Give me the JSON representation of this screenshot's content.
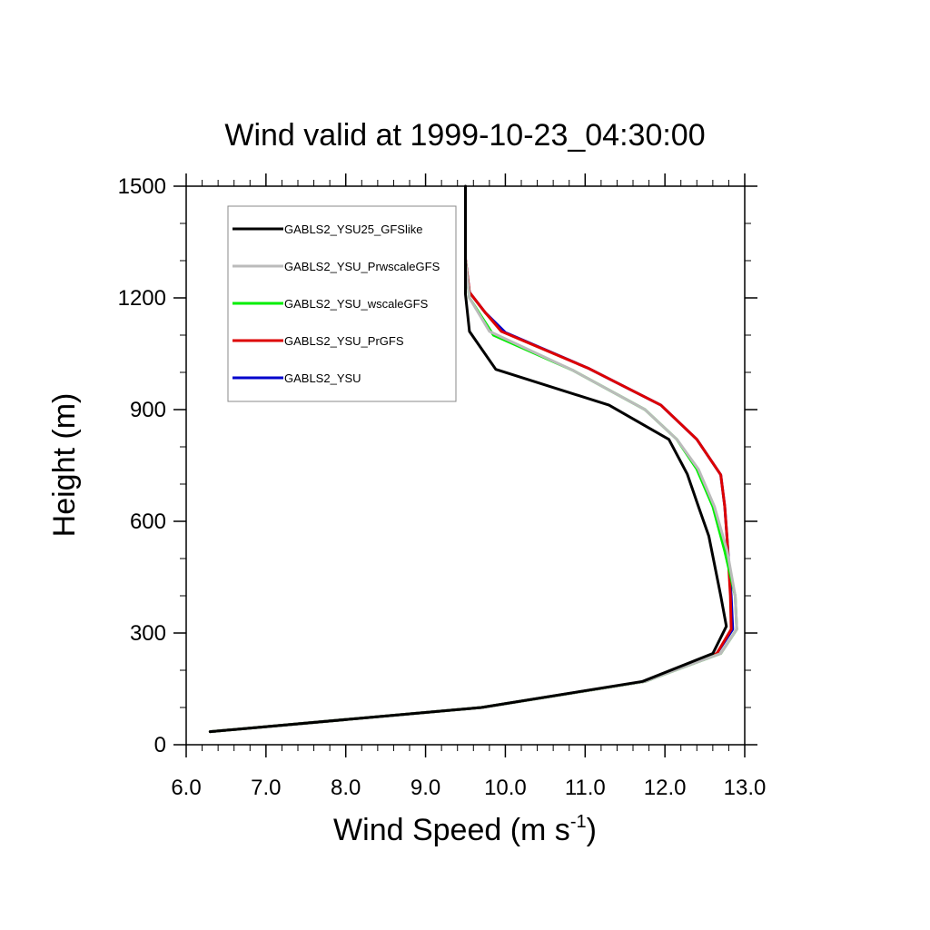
{
  "chart_data": {
    "type": "line",
    "title": "Wind valid at 1999-10-23_04:30:00",
    "xlabel": "Wind Speed (m s",
    "xlabel_sup": "-1",
    "xlabel_end": ")",
    "ylabel": "Height (m)",
    "xlim": [
      6.0,
      13.0
    ],
    "ylim": [
      0,
      1500
    ],
    "x_ticks": [
      6.0,
      7.0,
      8.0,
      9.0,
      10.0,
      11.0,
      12.0,
      13.0
    ],
    "x_tick_labels": [
      "6.0",
      "7.0",
      "8.0",
      "9.0",
      "10.0",
      "11.0",
      "12.0",
      "13.0"
    ],
    "y_ticks": [
      0,
      300,
      600,
      900,
      1200,
      1500
    ],
    "y_tick_labels": [
      "0",
      "300",
      "600",
      "900",
      "1200",
      "1500"
    ],
    "grid": false,
    "legend_position": "top-left",
    "series": [
      {
        "name": "GABLS2_YSU",
        "color": "#0000cc",
        "points": [
          [
            6.3,
            35
          ],
          [
            9.7,
            100
          ],
          [
            11.75,
            170
          ],
          [
            12.65,
            245
          ],
          [
            12.85,
            310
          ],
          [
            12.83,
            400
          ],
          [
            12.78,
            550
          ],
          [
            12.75,
            640
          ],
          [
            12.7,
            725
          ],
          [
            12.4,
            820
          ],
          [
            11.95,
            912
          ],
          [
            11.05,
            1010
          ],
          [
            10.0,
            1107
          ],
          [
            9.75,
            1160
          ],
          [
            9.55,
            1215
          ],
          [
            9.5,
            1305
          ]
        ]
      },
      {
        "name": "GABLS2_YSU_PrGFS",
        "color": "#dd0000",
        "points": [
          [
            6.3,
            35
          ],
          [
            9.7,
            100
          ],
          [
            11.75,
            170
          ],
          [
            12.65,
            245
          ],
          [
            12.83,
            310
          ],
          [
            12.82,
            400
          ],
          [
            12.78,
            550
          ],
          [
            12.75,
            640
          ],
          [
            12.7,
            725
          ],
          [
            12.4,
            820
          ],
          [
            11.95,
            912
          ],
          [
            11.05,
            1010
          ],
          [
            9.95,
            1110
          ],
          [
            9.75,
            1160
          ],
          [
            9.55,
            1215
          ],
          [
            9.5,
            1305
          ]
        ]
      },
      {
        "name": "GABLS2_YSU_wscaleGFS",
        "color": "#00ee00",
        "points": [
          [
            6.3,
            35
          ],
          [
            9.7,
            100
          ],
          [
            11.75,
            170
          ],
          [
            12.7,
            245
          ],
          [
            12.9,
            310
          ],
          [
            12.88,
            400
          ],
          [
            12.75,
            520
          ],
          [
            12.6,
            640
          ],
          [
            12.4,
            740
          ],
          [
            12.15,
            820
          ],
          [
            11.75,
            900
          ],
          [
            10.85,
            1005
          ],
          [
            9.85,
            1100
          ],
          [
            9.55,
            1200
          ],
          [
            9.5,
            1300
          ]
        ]
      },
      {
        "name": "GABLS2_YSU_PrwscaleGFS",
        "color": "#bbbbbb",
        "points": [
          [
            6.3,
            35
          ],
          [
            9.7,
            100
          ],
          [
            11.75,
            170
          ],
          [
            12.7,
            245
          ],
          [
            12.9,
            310
          ],
          [
            12.88,
            400
          ],
          [
            12.78,
            520
          ],
          [
            12.62,
            640
          ],
          [
            12.42,
            740
          ],
          [
            12.15,
            820
          ],
          [
            11.75,
            900
          ],
          [
            10.85,
            1005
          ],
          [
            9.8,
            1110
          ],
          [
            9.55,
            1200
          ],
          [
            9.5,
            1300
          ]
        ]
      },
      {
        "name": "GABLS2_YSU25_GFSlike",
        "color": "#000000",
        "points": [
          [
            6.3,
            35
          ],
          [
            9.7,
            100
          ],
          [
            11.72,
            170
          ],
          [
            12.6,
            245
          ],
          [
            12.77,
            318
          ],
          [
            12.7,
            400
          ],
          [
            12.55,
            560
          ],
          [
            12.42,
            640
          ],
          [
            12.28,
            727
          ],
          [
            12.05,
            820
          ],
          [
            11.3,
            912
          ],
          [
            9.88,
            1008
          ],
          [
            9.55,
            1110
          ],
          [
            9.5,
            1210
          ],
          [
            9.5,
            1500
          ]
        ]
      }
    ],
    "legend": [
      {
        "name": "GABLS2_YSU25_GFSlike",
        "color": "#000000"
      },
      {
        "name": "GABLS2_YSU_PrwscaleGFS",
        "color": "#bbbbbb"
      },
      {
        "name": "GABLS2_YSU_wscaleGFS",
        "color": "#00ee00"
      },
      {
        "name": "GABLS2_YSU_PrGFS",
        "color": "#dd0000"
      },
      {
        "name": "GABLS2_YSU",
        "color": "#0000cc"
      }
    ]
  }
}
